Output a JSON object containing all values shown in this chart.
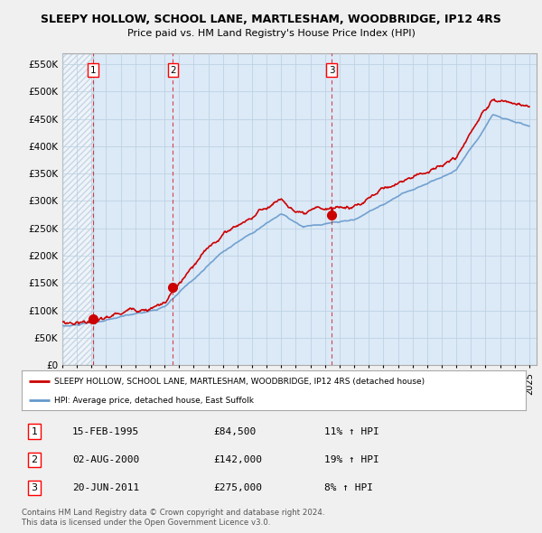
{
  "title": "SLEEPY HOLLOW, SCHOOL LANE, MARTLESHAM, WOODBRIDGE, IP12 4RS",
  "subtitle": "Price paid vs. HM Land Registry's House Price Index (HPI)",
  "ylim": [
    0,
    570000
  ],
  "yticks": [
    0,
    50000,
    100000,
    150000,
    200000,
    250000,
    300000,
    350000,
    400000,
    450000,
    500000,
    550000
  ],
  "ytick_labels": [
    "£0",
    "£50K",
    "£100K",
    "£150K",
    "£200K",
    "£250K",
    "£300K",
    "£350K",
    "£400K",
    "£450K",
    "£500K",
    "£550K"
  ],
  "sale_dates": [
    1995.12,
    2000.58,
    2011.46
  ],
  "sale_prices": [
    84500,
    142000,
    275000
  ],
  "sale_labels": [
    "1",
    "2",
    "3"
  ],
  "hpi_color": "#6699cc",
  "price_color": "#cc0000",
  "legend_price_label": "SLEEPY HOLLOW, SCHOOL LANE, MARTLESHAM, WOODBRIDGE, IP12 4RS (detached house)",
  "legend_hpi_label": "HPI: Average price, detached house, East Suffolk",
  "table_rows": [
    [
      "1",
      "15-FEB-1995",
      "£84,500",
      "11% ↑ HPI"
    ],
    [
      "2",
      "02-AUG-2000",
      "£142,000",
      "19% ↑ HPI"
    ],
    [
      "3",
      "20-JUN-2011",
      "£275,000",
      "8% ↑ HPI"
    ]
  ],
  "footer": "Contains HM Land Registry data © Crown copyright and database right 2024.\nThis data is licensed under the Open Government Licence v3.0.",
  "bg_color": "#f0f0f0",
  "plot_bg_color": "#dce9f7",
  "grid_color": "#b8cfe0",
  "hatch_bg_color": "#c8d8e8"
}
